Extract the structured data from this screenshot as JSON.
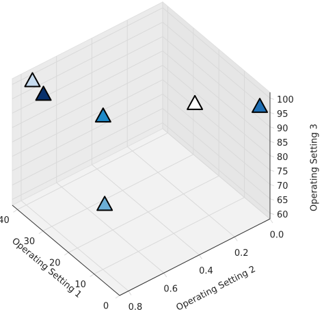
{
  "chart_data": {
    "type": "scatter3d",
    "x_label": "Operating Setting 1",
    "y_label": "Operating Setting 2",
    "z_label": "Operating Setting 3",
    "xlim": [
      0,
      42
    ],
    "ylim": [
      0,
      0.85
    ],
    "zlim": [
      58,
      102
    ],
    "xticks": [
      0,
      10,
      20,
      30,
      40
    ],
    "yticks": [
      {
        "value": 0,
        "label": "0.0"
      },
      {
        "value": 0.2,
        "label": "0.2"
      },
      {
        "value": 0.4,
        "label": "0.4"
      },
      {
        "value": 0.6,
        "label": "0.6"
      },
      {
        "value": 0.8,
        "label": "0.8"
      }
    ],
    "zticks": [
      60,
      65,
      70,
      75,
      80,
      85,
      90,
      95,
      100
    ],
    "grid": true,
    "marker": "triangle",
    "x": [
      40,
      35.7,
      21,
      29.4,
      4,
      23.5
    ],
    "y": [
      0.765,
      0.765,
      0.64,
      0,
      0,
      0.595
    ],
    "z": [
      100,
      98.5,
      98,
      76,
      94,
      64
    ],
    "colors": [
      "#c6dbef",
      "#08306b",
      "#1f8ac8",
      "#ffffff",
      "#1f6fb4",
      "#6baed6"
    ]
  }
}
